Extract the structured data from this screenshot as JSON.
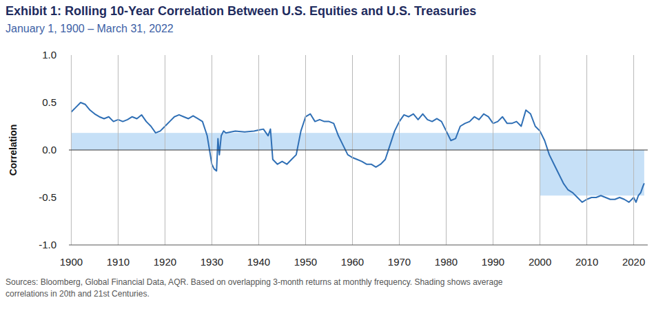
{
  "chart_data": {
    "type": "line",
    "title": "Exhibit 1: Rolling 10-Year Correlation Between U.S. Equities and U.S. Treasuries",
    "subtitle": "January 1, 1900 – March 31, 2022",
    "y_label": "Correlation",
    "source": [
      "Sources: Bloomberg, Global Financial Data, AQR. Based on overlapping 3-month returns at monthly frequency. Shading shows average",
      "correlations in 20th and 21st Centuries."
    ],
    "color": "#2f6fb5",
    "grid": true,
    "xlim": [
      1899.5,
      2023
    ],
    "xticks": [
      1900,
      1910,
      1920,
      1930,
      1940,
      1950,
      1960,
      1970,
      1980,
      1990,
      2000,
      2010,
      2020
    ],
    "ylim": [
      -1,
      1
    ],
    "yticks": [
      {
        "value": -1,
        "label": "-1.0"
      },
      -0.5,
      {
        "value": 0,
        "label": "0.0"
      },
      0.5,
      {
        "value": 1,
        "label": "1.0"
      }
    ],
    "shading": [
      {
        "from": 1900,
        "to": 2000,
        "value": 0.18,
        "color": "#c6e0f7"
      },
      {
        "from": 2000,
        "to": 2022.25,
        "value": -0.48,
        "color": "#c6e0f7"
      }
    ],
    "x": [
      1900,
      1901,
      1902,
      1903,
      1904,
      1905,
      1906,
      1907,
      1908,
      1909,
      1910,
      1911,
      1912,
      1913,
      1914,
      1915,
      1916,
      1917,
      1918,
      1919,
      1920,
      1921,
      1922,
      1923,
      1924,
      1925,
      1926,
      1927,
      1928,
      1929,
      1929.5,
      1930,
      1930.5,
      1931,
      1931.3,
      1931.6,
      1932,
      1932.5,
      1933,
      1935,
      1937,
      1939,
      1940,
      1941,
      1942,
      1942.5,
      1943,
      1944,
      1945,
      1946,
      1947,
      1948,
      1949,
      1950,
      1951,
      1952,
      1953,
      1954,
      1955,
      1956,
      1957,
      1958,
      1959,
      1960,
      1961,
      1962,
      1963,
      1964,
      1965,
      1966,
      1967,
      1968,
      1969,
      1970,
      1971,
      1972,
      1973,
      1974,
      1975,
      1976,
      1977,
      1978,
      1979,
      1980,
      1981,
      1982,
      1983,
      1984,
      1985,
      1986,
      1987,
      1988,
      1989,
      1990,
      1991,
      1992,
      1993,
      1994,
      1995,
      1996,
      1997,
      1998,
      1999,
      2000,
      2001,
      2002,
      2003,
      2004,
      2005,
      2006,
      2007,
      2008,
      2009,
      2010,
      2011,
      2012,
      2013,
      2014,
      2015,
      2016,
      2017,
      2018,
      2019,
      2020,
      2020.5,
      2021,
      2021.5,
      2022,
      2022.25
    ],
    "values": [
      0.4,
      0.45,
      0.5,
      0.48,
      0.42,
      0.38,
      0.35,
      0.33,
      0.35,
      0.3,
      0.32,
      0.3,
      0.32,
      0.35,
      0.33,
      0.37,
      0.3,
      0.25,
      0.18,
      0.2,
      0.25,
      0.3,
      0.35,
      0.37,
      0.35,
      0.33,
      0.36,
      0.33,
      0.3,
      0.15,
      0.0,
      -0.15,
      -0.2,
      -0.22,
      0.12,
      -0.05,
      0.15,
      0.2,
      0.18,
      0.2,
      0.19,
      0.2,
      0.21,
      0.22,
      0.15,
      0.22,
      -0.1,
      -0.15,
      -0.12,
      -0.15,
      -0.1,
      -0.05,
      0.2,
      0.35,
      0.38,
      0.3,
      0.32,
      0.3,
      0.3,
      0.28,
      0.15,
      0.05,
      -0.05,
      -0.08,
      -0.1,
      -0.12,
      -0.15,
      -0.15,
      -0.18,
      -0.15,
      -0.1,
      0.05,
      0.2,
      0.3,
      0.37,
      0.35,
      0.38,
      0.32,
      0.38,
      0.32,
      0.3,
      0.33,
      0.3,
      0.2,
      0.1,
      0.12,
      0.25,
      0.28,
      0.3,
      0.35,
      0.32,
      0.38,
      0.35,
      0.28,
      0.3,
      0.35,
      0.28,
      0.28,
      0.3,
      0.25,
      0.42,
      0.38,
      0.25,
      0.2,
      0.1,
      -0.05,
      -0.15,
      -0.25,
      -0.35,
      -0.42,
      -0.45,
      -0.5,
      -0.55,
      -0.52,
      -0.5,
      -0.5,
      -0.48,
      -0.5,
      -0.52,
      -0.52,
      -0.5,
      -0.52,
      -0.55,
      -0.5,
      -0.55,
      -0.48,
      -0.45,
      -0.38,
      -0.35
    ]
  }
}
